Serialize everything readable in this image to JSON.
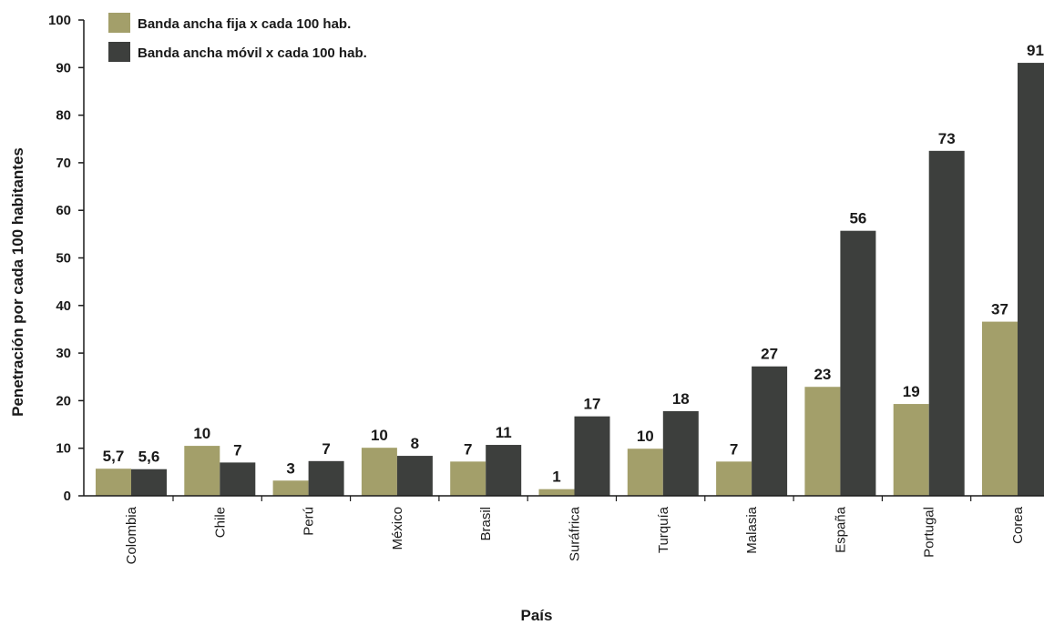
{
  "chart_data": {
    "type": "bar",
    "title": "",
    "xlabel": "País",
    "ylabel": "Penetración por cada 100 habitantes",
    "ylim": [
      0,
      100
    ],
    "yticks": [
      0,
      10,
      20,
      30,
      40,
      50,
      60,
      70,
      80,
      90,
      100
    ],
    "grid": false,
    "legend_position": "top-left",
    "categories": [
      "Colombia",
      "Chile",
      "Perú",
      "México",
      "Brasil",
      "Suráfrica",
      "Turquía",
      "Malasia",
      "España",
      "Portugal",
      "Corea"
    ],
    "series": [
      {
        "name": "Banda ancha fija x cada 100 hab.",
        "color": "#a39f6a",
        "values": [
          5.7,
          10.5,
          3.2,
          10.1,
          7.2,
          1.4,
          9.9,
          7.2,
          22.9,
          19.3,
          36.6
        ],
        "labels": [
          "5,7",
          "10",
          "3",
          "10",
          "7",
          "1",
          "10",
          "7",
          "23",
          "19",
          "37"
        ]
      },
      {
        "name": "Banda ancha móvil x cada 100 hab.",
        "color": "#3d3f3d",
        "values": [
          5.6,
          7.0,
          7.3,
          8.4,
          10.7,
          16.7,
          17.8,
          27.2,
          55.7,
          72.5,
          91.0
        ],
        "labels": [
          "5,6",
          "7",
          "7",
          "8",
          "11",
          "17",
          "18",
          "27",
          "56",
          "73",
          "91"
        ]
      }
    ]
  }
}
